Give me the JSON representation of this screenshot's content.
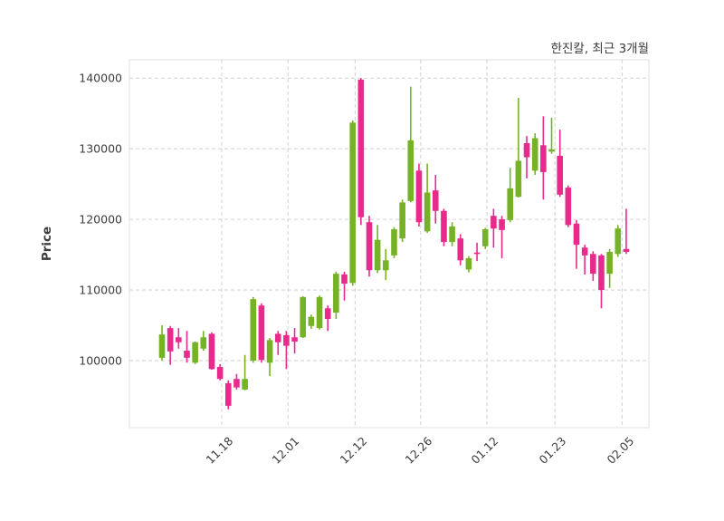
{
  "figure": {
    "background": "#ffffff",
    "plot_border_color": "#e4e4e4",
    "grid_color": "#d4d4d4",
    "text_color": "#3c3c3c"
  },
  "chart_data": {
    "type": "candlestick",
    "title": "한진칼, 최근 3개월",
    "xlabel": "",
    "ylabel": "Price",
    "legend": "none",
    "grid": "dashed",
    "ylim": [
      90500,
      142600
    ],
    "y_ticks": [
      100000,
      110000,
      120000,
      130000,
      140000
    ],
    "x_ticks": [
      {
        "label": "11.18",
        "i": 7.2
      },
      {
        "label": "12.01",
        "i": 15.2
      },
      {
        "label": "12.12",
        "i": 23.3
      },
      {
        "label": "12.26",
        "i": 31.2
      },
      {
        "label": "01.12",
        "i": 39.2
      },
      {
        "label": "01.23",
        "i": 47.4
      },
      {
        "label": "02.05",
        "i": 55.5
      }
    ],
    "colors": {
      "up": "#76b226",
      "down": "#e82a8c"
    },
    "series_note": "ohlc values in KRW, one candle per trading day",
    "candles": [
      [
        100400,
        105000,
        100000,
        103700
      ],
      [
        104600,
        104900,
        99400,
        101300
      ],
      [
        103300,
        104600,
        101700,
        102600
      ],
      [
        101400,
        104200,
        99700,
        100400
      ],
      [
        99700,
        102700,
        99500,
        102600
      ],
      [
        101700,
        104200,
        101400,
        103300
      ],
      [
        103800,
        104000,
        98700,
        98800
      ],
      [
        99100,
        99500,
        97200,
        97400
      ],
      [
        96800,
        97200,
        93100,
        93600
      ],
      [
        97400,
        98100,
        95900,
        96200
      ],
      [
        95900,
        100800,
        95800,
        97400
      ],
      [
        100000,
        109000,
        99700,
        108700
      ],
      [
        107800,
        108100,
        99700,
        100100
      ],
      [
        99700,
        103200,
        97800,
        102900
      ],
      [
        103800,
        104200,
        100800,
        102600
      ],
      [
        103600,
        104200,
        98800,
        102100
      ],
      [
        103300,
        104600,
        101000,
        102700
      ],
      [
        103300,
        109100,
        103200,
        109000
      ],
      [
        104900,
        106500,
        104500,
        106200
      ],
      [
        104600,
        109200,
        104400,
        109000
      ],
      [
        107400,
        107800,
        104200,
        105900
      ],
      [
        106800,
        112600,
        105900,
        112300
      ],
      [
        112200,
        112600,
        108500,
        110900
      ],
      [
        111000,
        134000,
        110600,
        133700
      ],
      [
        139800,
        140000,
        119200,
        120300
      ],
      [
        119600,
        120500,
        111900,
        112800
      ],
      [
        112800,
        119200,
        112400,
        117100
      ],
      [
        112800,
        115800,
        111400,
        114200
      ],
      [
        114900,
        118900,
        114500,
        118600
      ],
      [
        117300,
        122800,
        116800,
        122400
      ],
      [
        122600,
        138800,
        122400,
        131200
      ],
      [
        126900,
        127900,
        119000,
        119600
      ],
      [
        118300,
        127900,
        118100,
        123800
      ],
      [
        124100,
        126300,
        119400,
        121200
      ],
      [
        121200,
        121500,
        116200,
        116800
      ],
      [
        116800,
        119600,
        116200,
        119000
      ],
      [
        117300,
        117900,
        113500,
        114200
      ],
      [
        112900,
        114800,
        112500,
        114500
      ],
      [
        115300,
        116700,
        114100,
        115100
      ],
      [
        116200,
        118800,
        115800,
        118600
      ],
      [
        120500,
        121500,
        116000,
        118700
      ],
      [
        120000,
        120500,
        114500,
        118500
      ],
      [
        119900,
        127300,
        119600,
        124400
      ],
      [
        123200,
        137200,
        123100,
        128300
      ],
      [
        130800,
        131800,
        125800,
        128800
      ],
      [
        126900,
        132200,
        126300,
        131500
      ],
      [
        130500,
        134600,
        122800,
        126700
      ],
      [
        129600,
        134400,
        129300,
        129900
      ],
      [
        129000,
        132700,
        123200,
        123500
      ],
      [
        124500,
        124800,
        118900,
        119200
      ],
      [
        119400,
        119900,
        113000,
        116400
      ],
      [
        116000,
        116400,
        112200,
        114900
      ],
      [
        115100,
        115500,
        111300,
        112300
      ],
      [
        114900,
        115100,
        107400,
        110000
      ],
      [
        112300,
        115800,
        110300,
        115400
      ],
      [
        115100,
        119200,
        114700,
        118700
      ],
      [
        115800,
        121500,
        115100,
        115400
      ]
    ]
  }
}
